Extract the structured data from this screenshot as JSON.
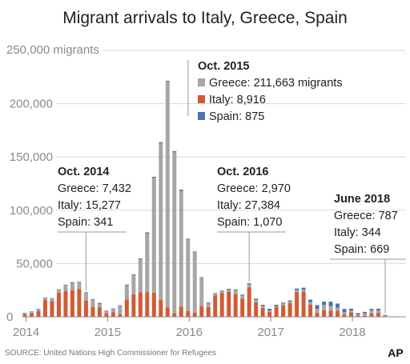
{
  "chart_data": {
    "type": "bar",
    "stacked": true,
    "title": "Migrant arrivals to Italy, Greece, Spain",
    "y_unit_label": "250,000 migrants",
    "yticks": [
      "200,000",
      "150,000",
      "100,000",
      "50,000",
      "0"
    ],
    "ytick_values": [
      200000,
      150000,
      100000,
      50000,
      0
    ],
    "ylim": [
      0,
      250000
    ],
    "xticks": [
      "2014",
      "2015",
      "2016",
      "2017",
      "2018"
    ],
    "xtick_indices": [
      0,
      12,
      24,
      36,
      48
    ],
    "grid": true,
    "colors": {
      "Greece": "#a6a6a6",
      "Italy": "#d35a33",
      "Spain": "#4d72b0"
    },
    "months": [
      "2014-01",
      "2014-02",
      "2014-03",
      "2014-04",
      "2014-05",
      "2014-06",
      "2014-07",
      "2014-08",
      "2014-09",
      "2014-10",
      "2014-11",
      "2014-12",
      "2015-01",
      "2015-02",
      "2015-03",
      "2015-04",
      "2015-05",
      "2015-06",
      "2015-07",
      "2015-08",
      "2015-09",
      "2015-10",
      "2015-11",
      "2015-12",
      "2016-01",
      "2016-02",
      "2016-03",
      "2016-04",
      "2016-05",
      "2016-06",
      "2016-07",
      "2016-08",
      "2016-09",
      "2016-10",
      "2016-11",
      "2016-12",
      "2017-01",
      "2017-02",
      "2017-03",
      "2017-04",
      "2017-05",
      "2017-06",
      "2017-07",
      "2017-08",
      "2017-09",
      "2017-10",
      "2017-11",
      "2017-12",
      "2018-01",
      "2018-02",
      "2018-03",
      "2018-04",
      "2018-05",
      "2018-06"
    ],
    "series": [
      {
        "name": "Italy",
        "values": [
          2200,
          3300,
          5500,
          15700,
          14600,
          22600,
          24000,
          24800,
          26100,
          15277,
          9200,
          8900,
          3500,
          4400,
          2300,
          16100,
          21200,
          22900,
          23200,
          22600,
          15900,
          8916,
          3200,
          9600,
          5300,
          3800,
          9700,
          9100,
          19900,
          22400,
          23600,
          21300,
          16900,
          27384,
          13600,
          8400,
          4500,
          9000,
          10800,
          12900,
          22900,
          23500,
          11500,
          3900,
          6300,
          5900,
          5600,
          2300,
          4200,
          1100,
          1000,
          3200,
          3900,
          344
        ]
      },
      {
        "name": "Greece",
        "values": [
          1200,
          1300,
          1600,
          1900,
          2600,
          2800,
          5500,
          6900,
          6300,
          7432,
          6700,
          3400,
          1700,
          2900,
          7900,
          13500,
          17900,
          31300,
          54900,
          107800,
          147100,
          211663,
          151200,
          108700,
          67400,
          57100,
          26900,
          3700,
          1700,
          1600,
          1900,
          3400,
          3100,
          2970,
          2000,
          1700,
          1400,
          1100,
          1700,
          1500,
          2100,
          2000,
          2200,
          3600,
          4900,
          4100,
          3000,
          2200,
          1600,
          1200,
          2400,
          3000,
          2200,
          787
        ]
      },
      {
        "name": "Spain",
        "values": [
          300,
          400,
          400,
          400,
          300,
          500,
          600,
          800,
          500,
          341,
          700,
          800,
          600,
          500,
          600,
          600,
          700,
          700,
          1100,
          1000,
          900,
          875,
          1000,
          1100,
          600,
          500,
          500,
          700,
          600,
          600,
          800,
          900,
          800,
          1070,
          1300,
          1100,
          1600,
          1200,
          900,
          1000,
          1500,
          1800,
          2400,
          3500,
          3000,
          4200,
          3800,
          2900,
          1800,
          1200,
          1200,
          1300,
          1500,
          669
        ]
      }
    ],
    "annotations": [
      {
        "month_index": 21,
        "heading": "Oct. 2015",
        "lines": [
          {
            "series": "Greece",
            "text": "Greece: 211,663 migrants"
          },
          {
            "series": "Italy",
            "text": "Italy: 8,916"
          },
          {
            "series": "Spain",
            "text": "Spain: 875"
          }
        ]
      },
      {
        "month_index": 9,
        "heading": "Oct. 2014",
        "lines": [
          {
            "text": "Greece: 7,432"
          },
          {
            "text": "Italy: 15,277"
          },
          {
            "text": "Spain: 341"
          }
        ]
      },
      {
        "month_index": 33,
        "heading": "Oct. 2016",
        "lines": [
          {
            "text": "Greece: 2,970"
          },
          {
            "text": "Italy: 27,384"
          },
          {
            "text": "Spain: 1,070"
          }
        ]
      },
      {
        "month_index": 53,
        "heading": "June 2018",
        "lines": [
          {
            "text": "Greece: 787"
          },
          {
            "text": "Italy: 344"
          },
          {
            "text": "Spain: 669"
          }
        ]
      }
    ],
    "source": "SOURCE: United Nations High Commissioner for Refugees",
    "credit": "AP"
  }
}
